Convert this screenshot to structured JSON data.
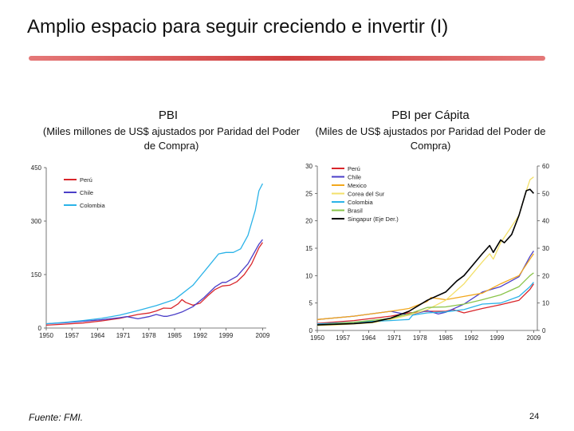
{
  "slide": {
    "title": "Amplio espacio para seguir creciendo e invertir (I)",
    "footer": "Fuente: FMI.",
    "page_number": "24"
  },
  "colors": {
    "rule": "#c81e1e"
  },
  "chart_data": [
    {
      "type": "line",
      "title": "PBI",
      "subtitle": "(Miles millones de US$ ajustados por Paridad del Poder de Compra)",
      "x_ticks": [
        "1950",
        "1957",
        "1964",
        "1971",
        "1978",
        "1985",
        "1992",
        "1999",
        "2009"
      ],
      "xlim": [
        1950,
        2010
      ],
      "y_ticks": [
        "0",
        "150",
        "300",
        "450"
      ],
      "ylim": [
        0,
        450
      ],
      "legend": "top-left",
      "series": [
        {
          "name": "Perú",
          "color": "#d9262b",
          "x": [
            1950,
            1955,
            1960,
            1965,
            1970,
            1975,
            1978,
            1980,
            1982,
            1984,
            1986,
            1987,
            1988,
            1990,
            1992,
            1994,
            1996,
            1998,
            2000,
            2002,
            2004,
            2006,
            2008,
            2009
          ],
          "y": [
            8,
            11,
            14,
            20,
            27,
            38,
            42,
            48,
            56,
            55,
            68,
            80,
            72,
            64,
            70,
            90,
            108,
            118,
            120,
            130,
            150,
            180,
            225,
            240
          ]
        },
        {
          "name": "Chile",
          "color": "#4b3fc8",
          "x": [
            1950,
            1955,
            1960,
            1965,
            1970,
            1972,
            1975,
            1978,
            1980,
            1982,
            1983,
            1985,
            1987,
            1990,
            1993,
            1996,
            1998,
            1999,
            2002,
            2005,
            2008,
            2009
          ],
          "y": [
            12,
            15,
            19,
            23,
            29,
            32,
            26,
            32,
            38,
            33,
            33,
            38,
            45,
            60,
            85,
            115,
            128,
            128,
            145,
            180,
            235,
            248
          ]
        },
        {
          "name": "Colombia",
          "color": "#2bb3e8",
          "x": [
            1950,
            1955,
            1960,
            1965,
            1970,
            1975,
            1980,
            1985,
            1990,
            1994,
            1997,
            1999,
            2001,
            2003,
            2005,
            2007,
            2008,
            2009
          ],
          "y": [
            12,
            16,
            21,
            27,
            36,
            49,
            63,
            80,
            120,
            170,
            208,
            212,
            212,
            222,
            260,
            330,
            385,
            405
          ]
        }
      ]
    },
    {
      "type": "line",
      "title": "PBI per Cápita",
      "subtitle": "(Miles de US$ ajustados por Paridad del Poder de Compra)",
      "x_ticks": [
        "1950",
        "1957",
        "1964",
        "1971",
        "1978",
        "1985",
        "1992",
        "1999",
        "2009"
      ],
      "xlim": [
        1950,
        2010
      ],
      "y_ticks": [
        "0",
        "5",
        "10",
        "15",
        "20",
        "25",
        "30"
      ],
      "ylim": [
        0,
        30
      ],
      "y2_ticks": [
        "0",
        "10",
        "20",
        "30",
        "40",
        "50",
        "60"
      ],
      "y2lim": [
        0,
        60
      ],
      "legend": "top-left",
      "series": [
        {
          "name": "Perú",
          "color": "#d9262b",
          "axis": "left",
          "x": [
            1950,
            1960,
            1970,
            1975,
            1980,
            1985,
            1987,
            1990,
            1995,
            2000,
            2005,
            2008,
            2009
          ],
          "y": [
            1.3,
            1.8,
            2.6,
            3.2,
            3.5,
            3.5,
            3.8,
            3.2,
            4.0,
            4.7,
            5.5,
            7.5,
            8.5
          ]
        },
        {
          "name": "Chile",
          "color": "#4b3fc8",
          "axis": "left",
          "x": [
            1950,
            1960,
            1970,
            1975,
            1980,
            1983,
            1985,
            1990,
            1995,
            2000,
            2005,
            2008,
            2009
          ],
          "y": [
            2.0,
            2.6,
            3.5,
            2.8,
            3.6,
            3.0,
            3.3,
            4.8,
            7.0,
            8.0,
            9.8,
            13.5,
            14.5
          ]
        },
        {
          "name": "Mexico",
          "color": "#f2a81d",
          "axis": "left",
          "x": [
            1950,
            1960,
            1970,
            1975,
            1980,
            1981,
            1985,
            1990,
            1995,
            2000,
            2005,
            2008,
            2009
          ],
          "y": [
            2.0,
            2.6,
            3.5,
            4.0,
            5.3,
            6.0,
            5.6,
            6.2,
            6.8,
            8.5,
            10.0,
            13.0,
            14.0
          ]
        },
        {
          "name": "Corea del Sur",
          "color": "#f3e06a",
          "axis": "left",
          "x": [
            1950,
            1955,
            1960,
            1965,
            1970,
            1975,
            1980,
            1985,
            1990,
            1995,
            1997,
            1998,
            2000,
            2005,
            2007,
            2008,
            2009
          ],
          "y": [
            0.9,
            1.0,
            1.2,
            1.4,
            2.0,
            2.8,
            3.8,
            5.5,
            8.5,
            12.5,
            14.0,
            13.0,
            16.0,
            21.0,
            25.5,
            27.5,
            28.0
          ]
        },
        {
          "name": "Colombia",
          "color": "#2bb3e8",
          "axis": "left",
          "x": [
            1950,
            1960,
            1970,
            1975,
            1976,
            1980,
            1985,
            1990,
            1995,
            2000,
            2005,
            2008,
            2009
          ],
          "y": [
            1.2,
            1.5,
            1.8,
            2.0,
            2.8,
            3.2,
            3.4,
            3.8,
            4.8,
            5.0,
            6.2,
            8.0,
            8.8
          ]
        },
        {
          "name": "Brasil",
          "color": "#8ac44a",
          "axis": "left",
          "x": [
            1950,
            1960,
            1970,
            1975,
            1980,
            1985,
            1990,
            1995,
            2000,
            2005,
            2008,
            2009
          ],
          "y": [
            1.0,
            1.5,
            2.2,
            3.0,
            4.2,
            4.3,
            4.8,
            5.6,
            6.5,
            8.0,
            10.0,
            10.5
          ]
        },
        {
          "name": "Singapur (Eje Der.)",
          "color": "#000000",
          "axis": "right",
          "x": [
            1950,
            1960,
            1965,
            1970,
            1975,
            1980,
            1985,
            1988,
            1990,
            1995,
            1997,
            1998,
            2000,
            2001,
            2003,
            2005,
            2007,
            2008,
            2009
          ],
          "y": [
            2.0,
            2.5,
            3.0,
            4.5,
            7.0,
            11.0,
            14.0,
            18.0,
            20.0,
            28.0,
            31.0,
            28.5,
            33.0,
            32.0,
            35.0,
            42.0,
            51.0,
            51.5,
            50.0
          ]
        }
      ]
    }
  ]
}
